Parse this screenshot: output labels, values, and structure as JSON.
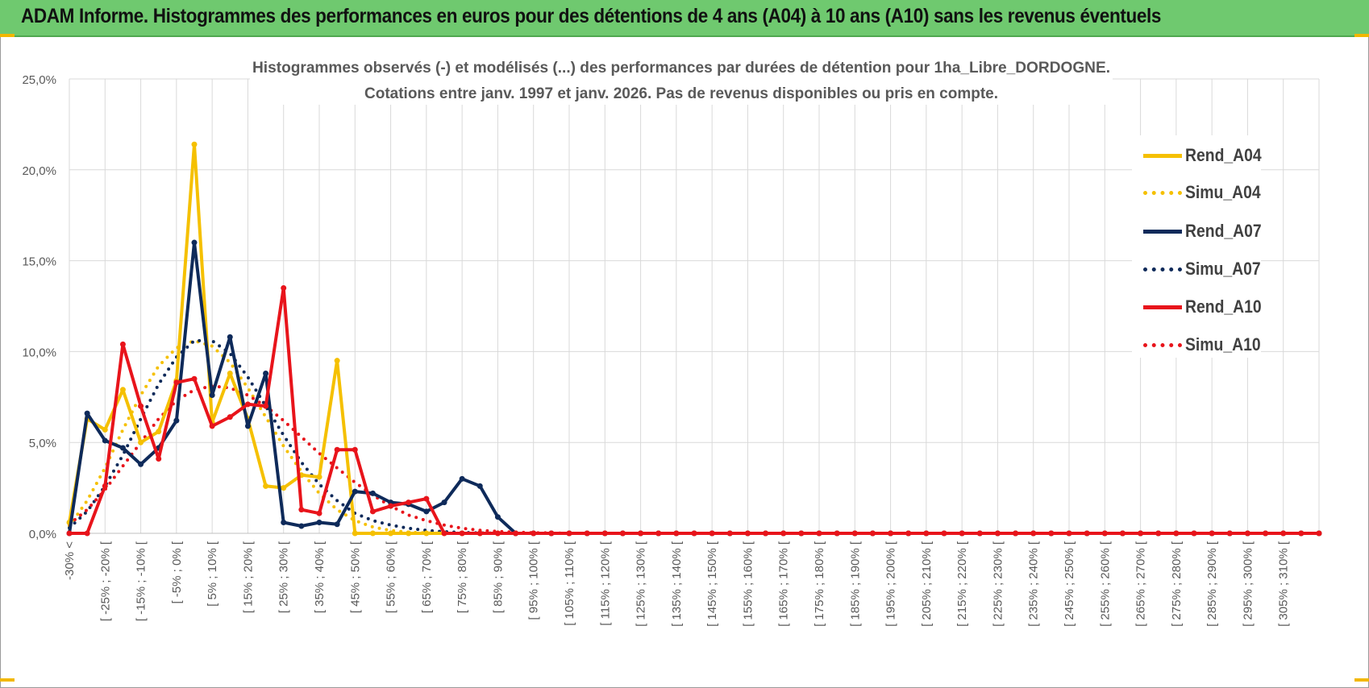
{
  "banner": {
    "title": "ADAM Informe. Histogrammes des performances en euros pour des détentions de 4 ans (A04) à 10 ans (A10) sans les revenus éventuels"
  },
  "colors": {
    "banner_bg": "#6FC96F",
    "A04": "#F5C000",
    "A07": "#0E2A5A",
    "A10": "#E8141B",
    "grid": "#D9D9D9",
    "axis_text": "#595959"
  },
  "chart_data": {
    "type": "line",
    "title_line1": "Histogrammes observés (-)  et modélisés (...)  des performances par durées de détention pour 1ha_Libre_DORDOGNE.",
    "title_line2": "Cotations entre janv. 1997 et janv. 2026. Pas de revenus disponibles ou pris en compte.",
    "y_ticks": [
      "25,0%",
      "20,0%",
      "15,0%",
      "10,0%",
      "5,0%",
      "0,0%"
    ],
    "ylim": [
      0,
      25
    ],
    "grid": true,
    "legend_position": "right",
    "x_tick_labels": [
      "-30% <",
      "[ -25% ; -20% [",
      "[ -15% ; -10% [",
      "[ -5% ; 0% [",
      "[ 5% ; 10% [",
      "[ 15% ; 20% [",
      "[ 25% ; 30% [",
      "[ 35% ; 40% [",
      "[ 45% ; 50% [",
      "[ 55% ; 60% [",
      "[ 65% ; 70% [",
      "[ 75% ; 80% [",
      "[ 85% ; 90% [",
      "[ 95% ; 100% [",
      "[ 105% ; 110% [",
      "[ 115% ; 120% [",
      "[ 125% ; 130% [",
      "[ 135% ; 140% [",
      "[ 145% ; 150% [",
      "[ 155% ; 160% [",
      "[ 165% ; 170% [",
      "[ 175% ; 180% [",
      "[ 185% ; 190% [",
      "[ 195% ; 200% [",
      "[ 205% ; 210% [",
      "[ 215% ; 220% [",
      "[ 225% ; 230% [",
      "[ 235% ; 240% [",
      "[ 245% ; 250% [",
      "[ 255% ; 260% [",
      "[ 265% ; 270% [",
      "[ 275% ; 280% [",
      "[ 285% ; 290% [",
      "[ 295% ; 300% [",
      "[ 305% ; 310% ["
    ],
    "n_bins": 71,
    "series": [
      {
        "name": "Rend_A04",
        "style": "solid",
        "color": "#F5C000",
        "markers": true,
        "values": [
          0.6,
          6.3,
          5.7,
          7.9,
          5.0,
          5.6,
          8.4,
          21.4,
          6.1,
          8.8,
          6.3,
          2.6,
          2.5,
          3.2,
          3.1,
          9.5,
          0,
          0,
          0,
          0,
          0,
          0,
          0,
          0,
          0,
          0,
          0,
          0,
          0,
          0,
          0,
          0,
          0,
          0,
          0,
          0,
          0,
          0,
          0,
          0,
          0,
          0,
          0,
          0,
          0,
          0,
          0,
          0,
          0,
          0,
          0,
          0,
          0,
          0,
          0,
          0,
          0,
          0,
          0,
          0,
          0,
          0,
          0,
          0,
          0,
          0,
          0,
          0,
          0,
          0,
          0
        ]
      },
      {
        "name": "Simu_A04",
        "style": "dotted",
        "color": "#F5C000",
        "markers": false,
        "values": [
          0.4,
          1.8,
          3.6,
          5.7,
          7.6,
          9.2,
          10.2,
          10.6,
          10.3,
          9.4,
          8.0,
          6.4,
          4.8,
          3.4,
          2.2,
          1.3,
          0.7,
          0.35,
          0.15,
          0.06,
          0.02,
          0,
          0,
          0,
          0,
          0,
          0,
          0,
          0,
          0,
          0,
          0,
          0,
          0,
          0,
          0,
          0,
          0,
          0,
          0,
          0,
          0,
          0,
          0,
          0,
          0,
          0,
          0,
          0,
          0,
          0,
          0,
          0,
          0,
          0,
          0,
          0,
          0,
          0,
          0,
          0,
          0,
          0,
          0,
          0,
          0,
          0,
          0,
          0,
          0,
          0
        ]
      },
      {
        "name": "Rend_A07",
        "style": "solid",
        "color": "#0E2A5A",
        "markers": true,
        "values": [
          0,
          6.6,
          5.1,
          4.7,
          3.8,
          4.7,
          6.2,
          16.0,
          7.6,
          10.8,
          5.9,
          8.8,
          0.6,
          0.4,
          0.6,
          0.5,
          2.3,
          2.2,
          1.7,
          1.6,
          1.2,
          1.7,
          3.0,
          2.6,
          0.9,
          0,
          0,
          0,
          0,
          0,
          0,
          0,
          0,
          0,
          0,
          0,
          0,
          0,
          0,
          0,
          0,
          0,
          0,
          0,
          0,
          0,
          0,
          0,
          0,
          0,
          0,
          0,
          0,
          0,
          0,
          0,
          0,
          0,
          0,
          0,
          0,
          0,
          0,
          0,
          0,
          0,
          0,
          0,
          0,
          0,
          0
        ]
      },
      {
        "name": "Simu_A07",
        "style": "dotted",
        "color": "#0E2A5A",
        "markers": false,
        "values": [
          0.3,
          1.2,
          2.6,
          4.3,
          6.3,
          8.2,
          9.7,
          10.6,
          10.6,
          9.9,
          8.6,
          7.0,
          5.4,
          3.9,
          2.7,
          1.8,
          1.1,
          0.7,
          0.45,
          0.28,
          0.16,
          0.09,
          0.05,
          0.02,
          0,
          0,
          0,
          0,
          0,
          0,
          0,
          0,
          0,
          0,
          0,
          0,
          0,
          0,
          0,
          0,
          0,
          0,
          0,
          0,
          0,
          0,
          0,
          0,
          0,
          0,
          0,
          0,
          0,
          0,
          0,
          0,
          0,
          0,
          0,
          0,
          0,
          0,
          0,
          0,
          0,
          0,
          0,
          0,
          0,
          0,
          0
        ]
      },
      {
        "name": "Rend_A10",
        "style": "solid",
        "color": "#E8141B",
        "markers": true,
        "values": [
          0,
          0,
          2.6,
          10.4,
          7.0,
          4.1,
          8.3,
          8.5,
          5.9,
          6.4,
          7.1,
          7.0,
          13.5,
          1.3,
          1.1,
          4.6,
          4.6,
          1.2,
          1.5,
          1.7,
          1.9,
          0,
          0,
          0,
          0,
          0,
          0,
          0,
          0,
          0,
          0,
          0,
          0,
          0,
          0,
          0,
          0,
          0,
          0,
          0,
          0,
          0,
          0,
          0,
          0,
          0,
          0,
          0,
          0,
          0,
          0,
          0,
          0,
          0,
          0,
          0,
          0,
          0,
          0,
          0,
          0,
          0,
          0,
          0,
          0,
          0,
          0,
          0,
          0,
          0,
          0
        ]
      },
      {
        "name": "Simu_A10",
        "style": "dotted",
        "color": "#E8141B",
        "markers": false,
        "values": [
          0.5,
          1.3,
          2.4,
          3.7,
          5.0,
          6.3,
          7.3,
          7.9,
          8.1,
          8.0,
          7.6,
          7.0,
          6.2,
          5.3,
          4.4,
          3.6,
          2.8,
          2.1,
          1.5,
          1.0,
          0.7,
          0.45,
          0.28,
          0.17,
          0.1,
          0.06,
          0.03,
          0.02,
          0,
          0,
          0,
          0,
          0,
          0,
          0,
          0,
          0,
          0,
          0,
          0,
          0,
          0,
          0,
          0,
          0,
          0,
          0,
          0,
          0,
          0,
          0,
          0,
          0,
          0,
          0,
          0,
          0,
          0,
          0,
          0,
          0,
          0,
          0,
          0,
          0,
          0,
          0,
          0,
          0,
          0,
          0
        ]
      }
    ]
  }
}
